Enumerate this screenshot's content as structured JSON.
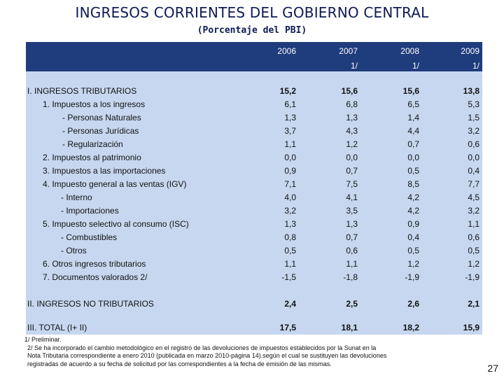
{
  "title": "INGRESOS CORRIENTES DEL GOBIERNO CENTRAL",
  "subtitle": "(Porcentaje del PBI)",
  "columns": [
    {
      "year": "2006",
      "footnote": ""
    },
    {
      "year": "2007",
      "footnote": "1/"
    },
    {
      "year": "2008",
      "footnote": "1/"
    },
    {
      "year": "2009",
      "footnote": "1/"
    }
  ],
  "rows": [
    {
      "label": "I.  INGRESOS TRIBUTARIOS",
      "values": [
        "15,2",
        "15,6",
        "15,6",
        "13,8"
      ]
    },
    {
      "label": "1. Impuestos a los ingresos",
      "values": [
        "6,1",
        "6,8",
        "6,5",
        "5,3"
      ]
    },
    {
      "label": "- Personas Naturales",
      "values": [
        "1,3",
        "1,3",
        "1,4",
        "1,5"
      ]
    },
    {
      "label": "- Personas Jurídicas",
      "values": [
        "3,7",
        "4,3",
        "4,4",
        "3,2"
      ]
    },
    {
      "label": "- Regularización",
      "values": [
        "1,1",
        "1,2",
        "0,7",
        "0,6"
      ]
    },
    {
      "label": "2. Impuestos al patrimonio",
      "values": [
        "0,0",
        "0,0",
        "0,0",
        "0,0"
      ]
    },
    {
      "label": "3. Impuestos a las importaciones",
      "values": [
        "0,9",
        "0,7",
        "0,5",
        "0,4"
      ]
    },
    {
      "label": "4. Impuesto general a las ventas (IGV)",
      "values": [
        "7,1",
        "7,5",
        "8,5",
        "7,7"
      ]
    },
    {
      "label": "- Interno",
      "values": [
        "4,0",
        "4,1",
        "4,2",
        "4,5"
      ]
    },
    {
      "label": "- Importaciones",
      "values": [
        "3,2",
        "3,5",
        "4,2",
        "3,2"
      ]
    },
    {
      "label": "5. Impuesto selectivo al consumo (ISC)",
      "values": [
        "1,3",
        "1,3",
        "0,9",
        "1,1"
      ]
    },
    {
      "label": "- Combustibles",
      "values": [
        "0,8",
        "0,7",
        "0,4",
        "0,6"
      ]
    },
    {
      "label": "- Otros",
      "values": [
        "0,5",
        "0,6",
        "0,5",
        "0,5"
      ]
    },
    {
      "label": "6. Otros ingresos tributarios",
      "values": [
        "1,1",
        "1,1",
        "1,2",
        "1,2"
      ]
    },
    {
      "label": "7. Documentos valorados 2/",
      "values": [
        "-1,5",
        "-1,8",
        "-1,9",
        "-1,9"
      ]
    },
    {
      "label": "II.  INGRESOS NO TRIBUTARIOS",
      "values": [
        "2,4",
        "2,5",
        "2,6",
        "2,1"
      ]
    },
    {
      "label": "III. TOTAL (I+ II)",
      "values": [
        "17,5",
        "18,1",
        "18,2",
        "15,9"
      ]
    }
  ],
  "notes": {
    "n1": "1/ Preliminar.",
    "n2": "2/ Se ha incorporado el cambio metodológico en el registro de las devoluciones de impuestos establecidos por la Sunat en la",
    "n3": "Nota Tributaria correspondiente a enero 2010 (publicada en marzo 2010-página 14).según el cual se sustituyen las devoluciones",
    "n4": "registradas de acuerdo a su fecha de solicitud por las correspondientes a la fecha de emisión de las mismas."
  },
  "page_number": "27"
}
